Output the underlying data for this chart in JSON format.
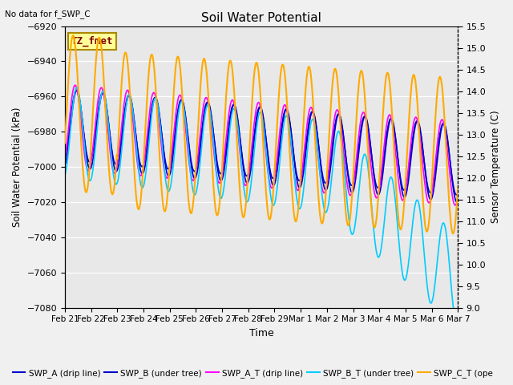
{
  "title": "Soil Water Potential",
  "note": "No data for f_SWP_C",
  "xlabel": "Time",
  "ylabel_left": "Soil Water Potential (kPa)",
  "ylabel_right": "Sensor Temperature (C)",
  "ylim_left": [
    -7080,
    -6920
  ],
  "ylim_right": [
    9.0,
    15.5
  ],
  "yticks_left": [
    -7080,
    -7060,
    -7040,
    -7020,
    -7000,
    -6980,
    -6960,
    -6940,
    -6920
  ],
  "yticks_right": [
    9.0,
    9.5,
    10.0,
    10.5,
    11.0,
    11.5,
    12.0,
    12.5,
    13.0,
    13.5,
    14.0,
    14.5,
    15.0,
    15.5
  ],
  "bg_color": "#e8e8e8",
  "fig_bg_color": "#f0f0f0",
  "legend_box_color": "#ffff99",
  "legend_box_text": "TZ_fmet",
  "legend_box_text_color": "#800000",
  "color_blue": "#0000cc",
  "color_magenta": "#ff00ff",
  "color_cyan": "#00ccff",
  "color_orange": "#ffaa00",
  "xtick_labels": [
    "Feb 21",
    "Feb 22",
    "Feb 23",
    "Feb 24",
    "Feb 25",
    "Feb 26",
    "Feb 27",
    "Feb 28",
    "Feb 29",
    "Mar 1",
    "Mar 2",
    "Mar 3",
    "Mar 4",
    "Mar 5",
    "Mar 6",
    "Mar 7"
  ],
  "num_days": 15,
  "legend_labels": [
    "SWP_A (drip line)",
    "SWP_B (under tree)",
    "SWP_A_T (drip line)",
    "SWP_B_T (under tree)",
    "SWP_C_T (ope"
  ]
}
